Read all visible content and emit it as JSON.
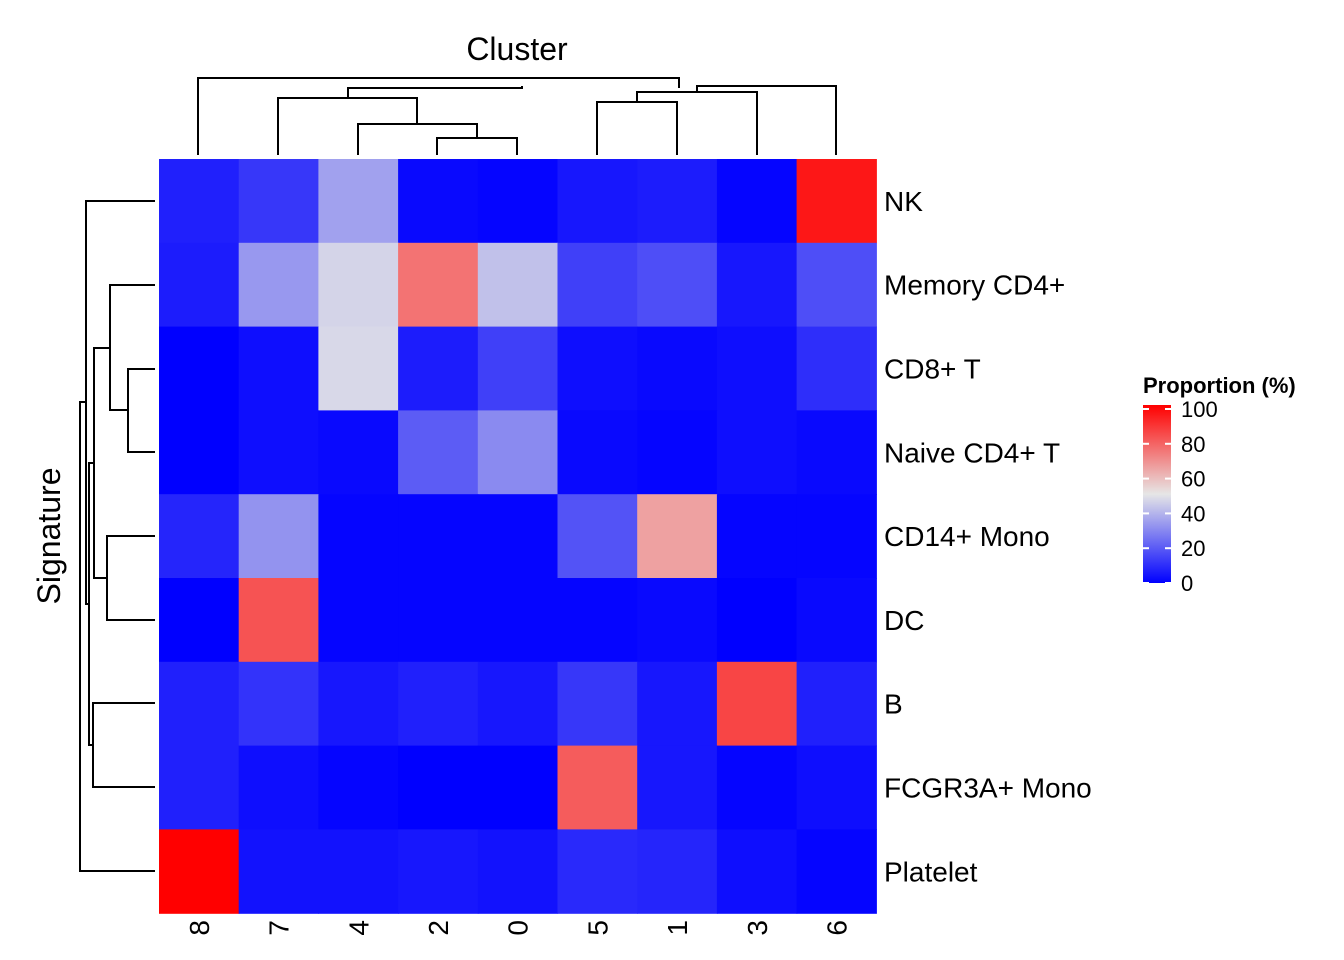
{
  "chart_data": {
    "type": "heatmap",
    "title": "Cluster",
    "xlabel": "Cluster",
    "ylabel": "Signature",
    "columns": [
      "8",
      "7",
      "4",
      "2",
      "0",
      "5",
      "1",
      "3",
      "6"
    ],
    "rows": [
      "NK",
      "Memory CD4+",
      "CD8+ T",
      "Naive CD4+ T",
      "CD14+ Mono",
      "DC",
      "B",
      "FCGR3A+ Mono",
      "Platelet"
    ],
    "values": [
      [
        7,
        12,
        35,
        2,
        1,
        5,
        6,
        1,
        95
      ],
      [
        6,
        33,
        46,
        75,
        42,
        14,
        17,
        5,
        17
      ],
      [
        0,
        3,
        47,
        6,
        14,
        3,
        2,
        3,
        10
      ],
      [
        0,
        3,
        2,
        20,
        30,
        2,
        1,
        3,
        2
      ],
      [
        8,
        32,
        1,
        1,
        1,
        18,
        65,
        1,
        1
      ],
      [
        0,
        82,
        1,
        1,
        1,
        1,
        2,
        0,
        2
      ],
      [
        7,
        11,
        5,
        7,
        5,
        12,
        5,
        85,
        7
      ],
      [
        7,
        3,
        1,
        0,
        0,
        80,
        5,
        1,
        3
      ],
      [
        100,
        4,
        4,
        5,
        4,
        9,
        8,
        3,
        1
      ]
    ],
    "color_scale": {
      "min": 0,
      "mid": 50,
      "max": 100,
      "low": "#0000ff",
      "midcolor": "#e6e6e6",
      "high": "#ff0000"
    },
    "legend": {
      "title": "Proportion (%)",
      "ticks": [
        "100",
        "80",
        "60",
        "40",
        "20",
        "0"
      ],
      "placement": "right"
    },
    "grid": false
  }
}
